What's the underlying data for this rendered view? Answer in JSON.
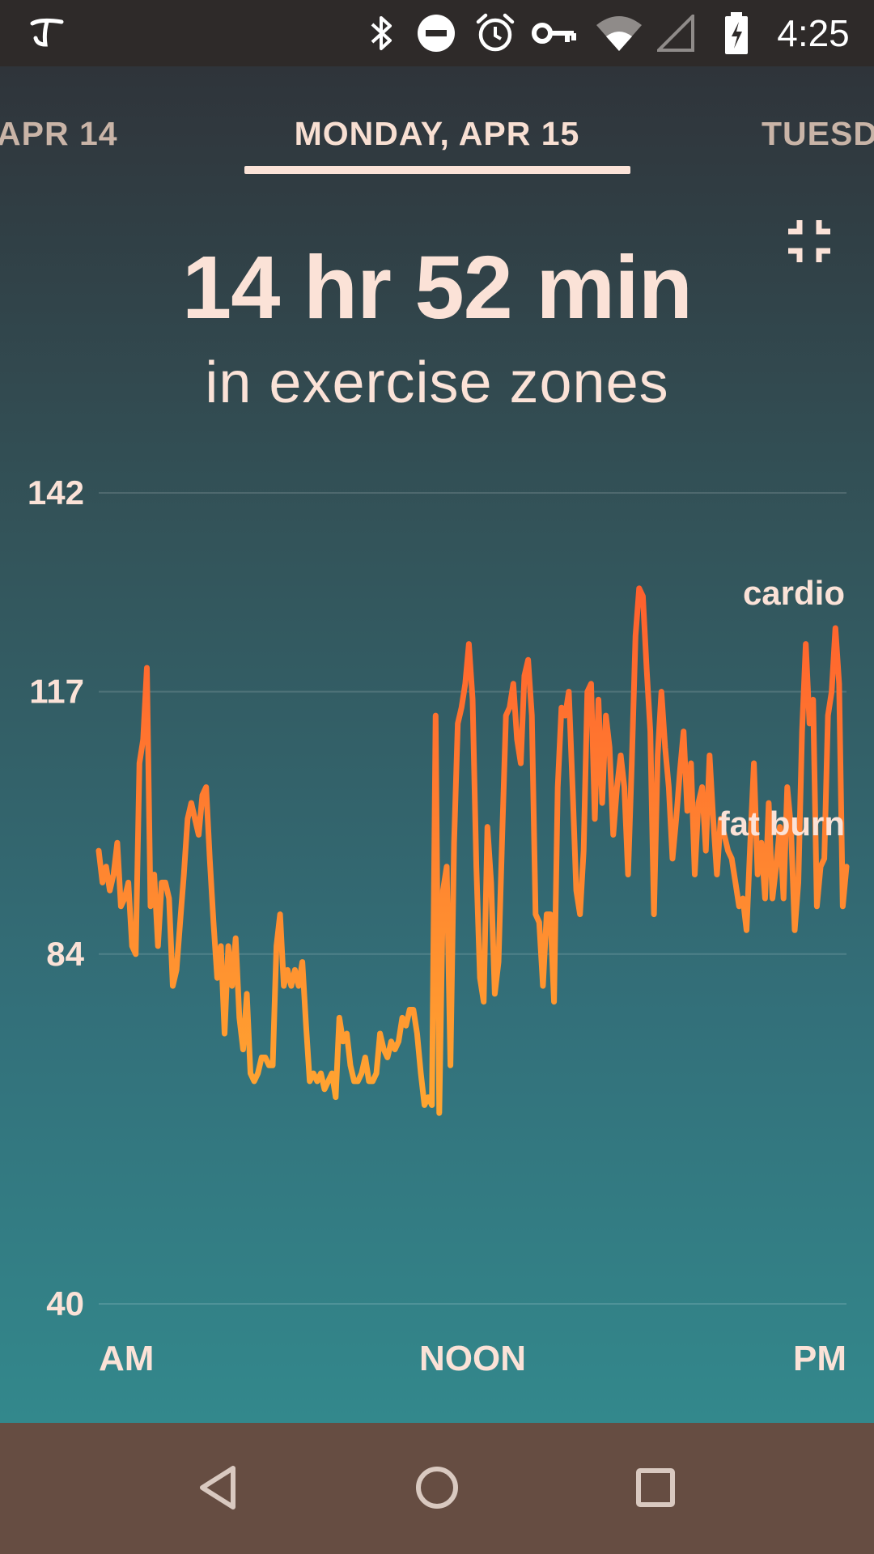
{
  "status_bar": {
    "time": "4:25",
    "icons": [
      "app-logo-icon",
      "bluetooth-icon",
      "do-not-disturb-icon",
      "alarm-icon",
      "vpn-key-icon",
      "wifi-icon",
      "cellular-signal-icon",
      "battery-charging-icon"
    ]
  },
  "date_tabs": {
    "previous": "APR 14",
    "current": "MONDAY, APR 15",
    "next": "TUESD"
  },
  "summary": {
    "duration": "14 hr 52 min",
    "caption": "in exercise zones"
  },
  "colors": {
    "line_high": "#ff5e2e",
    "line_low": "#ffa531",
    "accent_text": "#fbe2d7"
  },
  "chart_data": {
    "type": "line",
    "y_ticks": [
      "142",
      "117",
      "84",
      "40"
    ],
    "y_tick_values": [
      142,
      117,
      84,
      40
    ],
    "ylim": [
      40,
      142
    ],
    "x_labels": [
      "AM",
      "NOON",
      "PM"
    ],
    "zone_labels": [
      "cardio",
      "fat burn"
    ],
    "series": [
      {
        "values": [
          97,
          93,
          95,
          92,
          94,
          98,
          90,
          91,
          93,
          85,
          84,
          108,
          111,
          120,
          90,
          94,
          85,
          93,
          93,
          91,
          80,
          82,
          88,
          94,
          101,
          103,
          101,
          99,
          104,
          105,
          96,
          88,
          81,
          85,
          74,
          85,
          80,
          86,
          76,
          72,
          79,
          69,
          68,
          69,
          71,
          71,
          70,
          70,
          85,
          89,
          80,
          82,
          80,
          82,
          80,
          83,
          75,
          68,
          69,
          68,
          69,
          67,
          68,
          69,
          66,
          76,
          73,
          74,
          70,
          68,
          68,
          69,
          71,
          68,
          68,
          69,
          74,
          72,
          71,
          73,
          72,
          73,
          76,
          75,
          77,
          77,
          74,
          69,
          65,
          66,
          65,
          114,
          64,
          92,
          95,
          70,
          98,
          113,
          115,
          118,
          123,
          116,
          95,
          81,
          78,
          100,
          93,
          79,
          83,
          99,
          114,
          115,
          118,
          111,
          108,
          119,
          121,
          114,
          89,
          88,
          80,
          89,
          89,
          78,
          105,
          115,
          114,
          117,
          105,
          92,
          89,
          97,
          117,
          118,
          101,
          116,
          103,
          114,
          110,
          99,
          105,
          109,
          105,
          94,
          108,
          124,
          130,
          129,
          120,
          112,
          89,
          109,
          117,
          110,
          105,
          96,
          101,
          107,
          112,
          102,
          108,
          94,
          103,
          105,
          97,
          109,
          101,
          94,
          101,
          99,
          97,
          96,
          93,
          90,
          91,
          87,
          98,
          108,
          94,
          98,
          91,
          103,
          91,
          95,
          100,
          91,
          105,
          100,
          87,
          93,
          112,
          123,
          113,
          116,
          90,
          95,
          96,
          114,
          117,
          125,
          118,
          90,
          95
        ]
      }
    ]
  },
  "nav_bar": {
    "buttons": [
      "back-icon",
      "home-icon",
      "recents-icon"
    ]
  }
}
